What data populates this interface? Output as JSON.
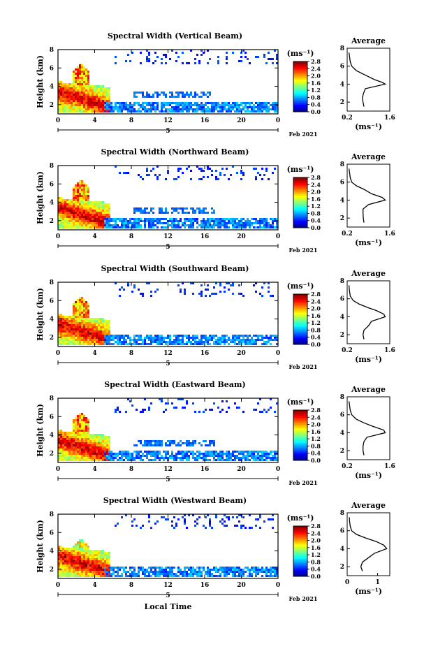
{
  "chart_data": [
    {
      "type": "heatmap",
      "title": "Spectral Width (Vertical Beam)",
      "ylabel": "Height (km)",
      "ylim": [
        1,
        8
      ],
      "yticks": [
        "2",
        "4",
        "6",
        "8"
      ],
      "xlim": [
        0,
        24
      ],
      "xticks": [
        "0",
        "4",
        "8",
        "12",
        "16",
        "20",
        "0"
      ],
      "day_label": "5",
      "date_label": "Feb 2021",
      "colorbar": {
        "unit": "(ms⁻¹)",
        "range": [
          0,
          2.8
        ],
        "ticks": [
          "2.8",
          "2.4",
          "2.0",
          "1.6",
          "1.2",
          "0.8",
          "0.4",
          "0.0"
        ]
      },
      "average": {
        "title": "Average",
        "xlabel": "(ms⁻¹)",
        "xticks": [
          "0.2",
          "1.6"
        ],
        "xlim": [
          0.2,
          1.6
        ],
        "yticks": [
          "2",
          "4",
          "6",
          "8"
        ],
        "profile": [
          [
            0.75,
            1.5
          ],
          [
            0.72,
            2.0
          ],
          [
            0.7,
            2.5
          ],
          [
            0.74,
            3.0
          ],
          [
            0.8,
            3.5
          ],
          [
            1.45,
            4.0
          ],
          [
            1.35,
            4.2
          ],
          [
            1.1,
            4.5
          ],
          [
            0.8,
            5.0
          ],
          [
            0.5,
            5.5
          ],
          [
            0.35,
            6.0
          ],
          [
            0.3,
            6.5
          ],
          [
            0.28,
            7.0
          ],
          [
            0.26,
            7.5
          ]
        ]
      }
    },
    {
      "type": "heatmap",
      "title": "Spectral Width (Northward Beam)",
      "ylabel": "Height (km)",
      "ylim": [
        1,
        8
      ],
      "yticks": [
        "2",
        "4",
        "6",
        "8"
      ],
      "xlim": [
        0,
        24
      ],
      "xticks": [
        "0",
        "4",
        "8",
        "12",
        "16",
        "20",
        "0"
      ],
      "day_label": "5",
      "date_label": "Feb 2021",
      "colorbar": {
        "unit": "(ms⁻¹)",
        "range": [
          0,
          2.8
        ],
        "ticks": [
          "2.8",
          "2.4",
          "2.0",
          "1.6",
          "1.2",
          "0.8",
          "0.4",
          "0.0"
        ]
      },
      "average": {
        "title": "Average",
        "xlabel": "(ms⁻¹)",
        "xticks": [
          "0.2",
          "1.6"
        ],
        "xlim": [
          0.2,
          1.6
        ],
        "yticks": [
          "2",
          "4",
          "6",
          "8"
        ],
        "profile": [
          [
            0.75,
            1.5
          ],
          [
            0.73,
            2.0
          ],
          [
            0.72,
            2.5
          ],
          [
            0.72,
            3.0
          ],
          [
            0.9,
            3.5
          ],
          [
            1.45,
            4.0
          ],
          [
            1.35,
            4.3
          ],
          [
            1.0,
            4.7
          ],
          [
            0.75,
            5.2
          ],
          [
            0.5,
            5.6
          ],
          [
            0.35,
            6.0
          ],
          [
            0.3,
            6.5
          ],
          [
            0.28,
            7.0
          ],
          [
            0.26,
            7.5
          ]
        ]
      }
    },
    {
      "type": "heatmap",
      "title": "Spectral Width (Southward Beam)",
      "ylabel": "Height (km)",
      "ylim": [
        1,
        8
      ],
      "yticks": [
        "2",
        "4",
        "6",
        "8"
      ],
      "xlim": [
        0,
        24
      ],
      "xticks": [
        "0",
        "4",
        "8",
        "12",
        "16",
        "20",
        "0"
      ],
      "day_label": "5",
      "date_label": "Feb 2021",
      "colorbar": {
        "unit": "(ms⁻¹)",
        "range": [
          0,
          2.8
        ],
        "ticks": [
          "2.8",
          "2.4",
          "2.0",
          "1.6",
          "1.2",
          "0.8",
          "0.4",
          "0.0"
        ]
      },
      "average": {
        "title": "Average",
        "xlabel": "(ms⁻¹)",
        "xticks": [
          "0.2",
          "1.6"
        ],
        "xlim": [
          0.2,
          1.6
        ],
        "yticks": [
          "2",
          "4",
          "6",
          "8"
        ],
        "profile": [
          [
            0.75,
            1.5
          ],
          [
            0.72,
            2.0
          ],
          [
            0.75,
            2.5
          ],
          [
            0.9,
            3.0
          ],
          [
            1.0,
            3.5
          ],
          [
            1.45,
            4.0
          ],
          [
            1.4,
            4.3
          ],
          [
            1.15,
            4.7
          ],
          [
            0.9,
            5.0
          ],
          [
            0.6,
            5.4
          ],
          [
            0.4,
            5.8
          ],
          [
            0.3,
            6.3
          ],
          [
            0.27,
            7.0
          ],
          [
            0.26,
            7.5
          ]
        ]
      }
    },
    {
      "type": "heatmap",
      "title": "Spectral Width (Eastward Beam)",
      "ylabel": "Height (km)",
      "ylim": [
        1,
        8
      ],
      "yticks": [
        "2",
        "4",
        "6",
        "8"
      ],
      "xlim": [
        0,
        24
      ],
      "xticks": [
        "0",
        "4",
        "8",
        "12",
        "16",
        "20",
        "0"
      ],
      "day_label": "5",
      "date_label": "Feb 2021",
      "colorbar": {
        "unit": "(ms⁻¹)",
        "range": [
          0,
          2.8
        ],
        "ticks": [
          "2.8",
          "2.4",
          "2.0",
          "1.6",
          "1.2",
          "0.8",
          "0.4",
          "0.0"
        ]
      },
      "average": {
        "title": "Average",
        "xlabel": "(ms⁻¹)",
        "xticks": [
          "0.2",
          "1.6"
        ],
        "xlim": [
          0.2,
          1.6
        ],
        "yticks": [
          "2",
          "4",
          "6",
          "8"
        ],
        "profile": [
          [
            0.75,
            1.5
          ],
          [
            0.72,
            2.0
          ],
          [
            0.72,
            2.5
          ],
          [
            0.75,
            3.0
          ],
          [
            0.85,
            3.5
          ],
          [
            1.45,
            4.0
          ],
          [
            1.4,
            4.3
          ],
          [
            1.05,
            4.7
          ],
          [
            0.75,
            5.1
          ],
          [
            0.5,
            5.5
          ],
          [
            0.35,
            6.0
          ],
          [
            0.3,
            6.5
          ],
          [
            0.28,
            7.0
          ],
          [
            0.26,
            7.5
          ]
        ]
      }
    },
    {
      "type": "heatmap",
      "title": "Spectral Width (Westward Beam)",
      "ylabel": "Height (km)",
      "ylim": [
        1,
        8
      ],
      "yticks": [
        "2",
        "4",
        "6",
        "8"
      ],
      "xlim": [
        0,
        24
      ],
      "xticks": [
        "0",
        "4",
        "8",
        "12",
        "16",
        "20",
        "0"
      ],
      "day_label": "5",
      "xlabel": "Local Time",
      "date_label": "Feb 2021",
      "colorbar": {
        "unit": "(ms⁻¹)",
        "range": [
          0,
          2.8
        ],
        "ticks": [
          "2.8",
          "2.4",
          "2.0",
          "1.6",
          "1.2",
          "0.8",
          "0.4",
          "0.0"
        ]
      },
      "average": {
        "title": "Average",
        "xlabel": "(ms⁻¹)",
        "xticks": [
          "0",
          "1"
        ],
        "xlim": [
          0,
          1.4
        ],
        "yticks": [
          "2",
          "4",
          "6",
          "8"
        ],
        "profile": [
          [
            0.5,
            1.5
          ],
          [
            0.45,
            2.0
          ],
          [
            0.5,
            2.5
          ],
          [
            0.7,
            3.0
          ],
          [
            0.9,
            3.5
          ],
          [
            1.3,
            4.0
          ],
          [
            1.2,
            4.4
          ],
          [
            0.95,
            4.8
          ],
          [
            0.6,
            5.2
          ],
          [
            0.3,
            5.6
          ],
          [
            0.15,
            6.0
          ],
          [
            0.1,
            6.5
          ],
          [
            0.08,
            7.0
          ],
          [
            0.07,
            7.5
          ]
        ]
      }
    }
  ]
}
